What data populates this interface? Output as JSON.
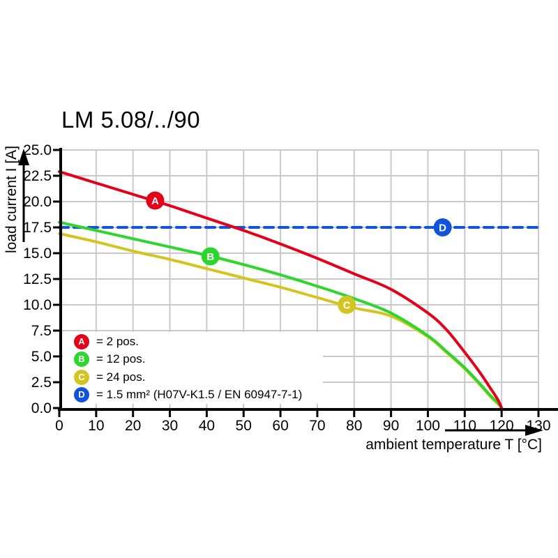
{
  "title": "LM 5.08/../90",
  "chart_data": {
    "type": "line",
    "title": "LM 5.08/../90",
    "xlabel": "ambient temperature T [°C]",
    "ylabel": "load current I [A]",
    "xlim": [
      0,
      130
    ],
    "ylim": [
      0,
      25
    ],
    "grid": true,
    "x_ticks": [
      0,
      10,
      20,
      30,
      40,
      50,
      60,
      70,
      80,
      90,
      100,
      110,
      120,
      130
    ],
    "x_tick_labels": [
      "0",
      "10",
      "20",
      "30",
      "40",
      "50",
      "60",
      "70",
      "80",
      "90",
      "100",
      "110",
      "120",
      "130"
    ],
    "y_ticks": [
      0,
      2.5,
      5,
      7.5,
      10,
      12.5,
      15,
      17.5,
      20,
      22.5,
      25
    ],
    "y_tick_labels": [
      "0.0",
      "2.5",
      "5.0",
      "7.5",
      "10.0",
      "12.5",
      "15.0",
      "17.5",
      "20.0",
      "22.5",
      "25.0"
    ],
    "series": [
      {
        "name": "D",
        "label": "1.5 mm² (H07V-K1.5 / EN 60947-7-1)",
        "color": "#1253dc",
        "style": "dashed",
        "points": [
          [
            0,
            17.5
          ],
          [
            130,
            17.5
          ]
        ]
      },
      {
        "name": "C",
        "label": "24 pos.",
        "color": "#d4c422",
        "style": "solid",
        "points": [
          [
            0,
            16.9
          ],
          [
            10,
            16.1
          ],
          [
            20,
            15.2
          ],
          [
            30,
            14.4
          ],
          [
            40,
            13.5
          ],
          [
            50,
            12.6
          ],
          [
            60,
            11.7
          ],
          [
            70,
            10.7
          ],
          [
            80,
            9.7
          ],
          [
            90,
            8.9
          ],
          [
            100,
            6.9
          ],
          [
            105,
            5.4
          ],
          [
            110,
            3.8
          ],
          [
            114,
            2.3
          ],
          [
            117,
            1.1
          ],
          [
            119,
            0.4
          ],
          [
            120,
            0
          ]
        ]
      },
      {
        "name": "B",
        "label": "12 pos.",
        "color": "#2dd62d",
        "style": "solid",
        "points": [
          [
            0,
            18.0
          ],
          [
            10,
            17.2
          ],
          [
            20,
            16.4
          ],
          [
            30,
            15.6
          ],
          [
            40,
            14.8
          ],
          [
            50,
            13.9
          ],
          [
            60,
            12.9
          ],
          [
            70,
            11.8
          ],
          [
            80,
            10.6
          ],
          [
            90,
            9.2
          ],
          [
            100,
            7.0
          ],
          [
            105,
            5.5
          ],
          [
            110,
            3.9
          ],
          [
            114,
            2.4
          ],
          [
            117,
            1.2
          ],
          [
            119,
            0.5
          ],
          [
            120,
            0
          ]
        ]
      },
      {
        "name": "A",
        "label": "2 pos.",
        "color": "#e50019",
        "style": "solid",
        "points": [
          [
            0,
            22.9
          ],
          [
            10,
            21.8
          ],
          [
            20,
            20.7
          ],
          [
            30,
            19.6
          ],
          [
            40,
            18.4
          ],
          [
            50,
            17.2
          ],
          [
            60,
            15.9
          ],
          [
            70,
            14.5
          ],
          [
            80,
            13.0
          ],
          [
            90,
            11.5
          ],
          [
            100,
            9.2
          ],
          [
            105,
            7.6
          ],
          [
            110,
            5.4
          ],
          [
            114,
            3.5
          ],
          [
            117,
            1.9
          ],
          [
            119,
            0.8
          ],
          [
            120,
            0
          ]
        ]
      }
    ],
    "markers": [
      {
        "letter": "A",
        "x": 26,
        "y": 20.1,
        "color": "#e50019"
      },
      {
        "letter": "B",
        "x": 41,
        "y": 14.7,
        "color": "#2dd62d"
      },
      {
        "letter": "C",
        "x": 78,
        "y": 10.0,
        "color": "#d4c422"
      },
      {
        "letter": "D",
        "x": 104,
        "y": 17.5,
        "color": "#1253dc"
      }
    ],
    "legend_position": "lower-left"
  },
  "legend": {
    "items": [
      {
        "letter": "A",
        "label": "= 2 pos.",
        "color": "#e50019"
      },
      {
        "letter": "B",
        "label": "= 12 pos.",
        "color": "#2dd62d"
      },
      {
        "letter": "C",
        "label": "= 24 pos.",
        "color": "#d4c422"
      },
      {
        "letter": "D",
        "label": "= 1.5 mm² (H07V-K1.5 / EN 60947-7-1)",
        "color": "#1253dc"
      }
    ]
  },
  "colors": {
    "grid": "#c9c9c9",
    "axis": "#000000",
    "background": "#ffffff"
  }
}
